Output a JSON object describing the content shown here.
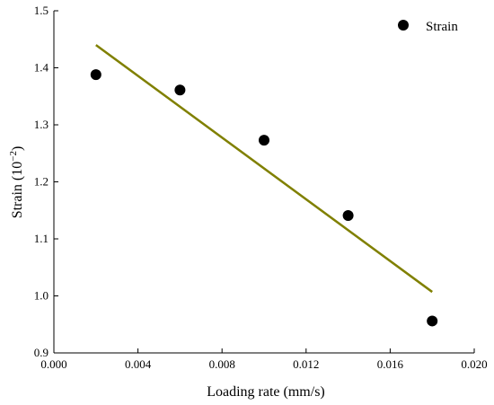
{
  "chart_data": {
    "type": "scatter",
    "xlabel": "Loading rate (mm/s)",
    "ylabel_main": "Strain (10",
    "ylabel_exp": "−2",
    "ylabel_close": ")",
    "xlim": [
      0.0,
      0.02
    ],
    "ylim": [
      0.9,
      1.5
    ],
    "xticks": [
      0.0,
      0.004,
      0.008,
      0.012,
      0.016,
      0.02
    ],
    "xtick_labels": [
      "0.000",
      "0.004",
      "0.008",
      "0.012",
      "0.016",
      "0.020"
    ],
    "yticks": [
      0.9,
      1.0,
      1.1,
      1.2,
      1.3,
      1.4,
      1.5
    ],
    "ytick_labels": [
      "0.9",
      "1.0",
      "1.1",
      "1.2",
      "1.3",
      "1.4",
      "1.5"
    ],
    "grid": false,
    "legend_position": "top-right",
    "series": [
      {
        "name": "Strain",
        "color": "#000000",
        "x": [
          0.002,
          0.006,
          0.01,
          0.014,
          0.018
        ],
        "y": [
          1.388,
          1.361,
          1.273,
          1.141,
          0.956
        ]
      }
    ],
    "fit_line": {
      "color": "#808000",
      "x": [
        0.002,
        0.018
      ],
      "y": [
        1.44,
        1.007
      ]
    }
  }
}
